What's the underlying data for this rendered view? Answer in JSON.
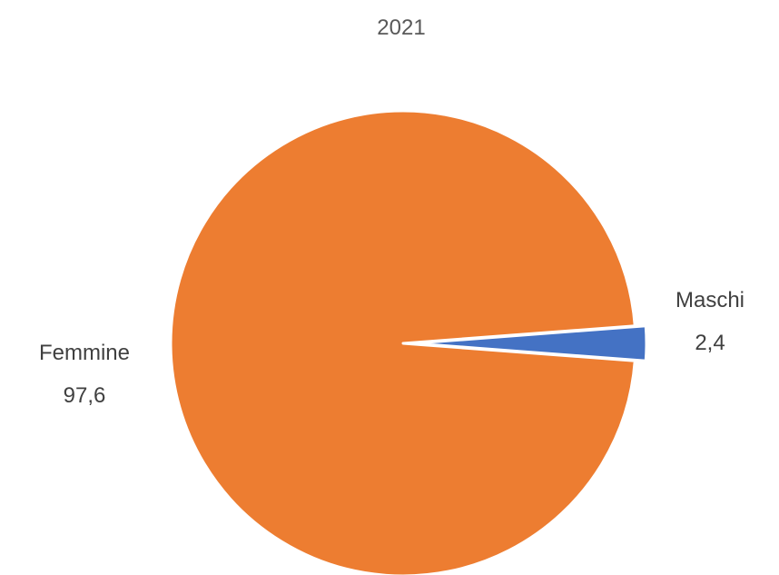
{
  "chart_data": {
    "type": "pie",
    "title": "2021",
    "categories": [
      "Maschi",
      "Femmine"
    ],
    "values": [
      2.4,
      97.6
    ],
    "value_labels": [
      "2,4",
      "97,6"
    ],
    "colors": [
      "#4472C4",
      "#ED7D31"
    ],
    "exploded": [
      "Maschi"
    ],
    "legend": "none",
    "data_labels": "category-and-value"
  }
}
